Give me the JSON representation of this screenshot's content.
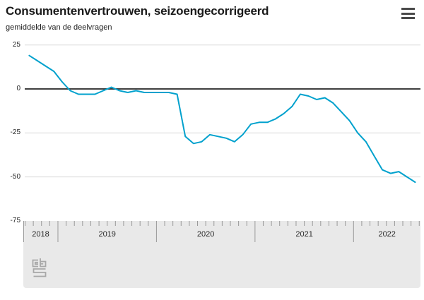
{
  "header": {
    "title": "Consumentenvertrouwen, seizoengecorrigeerd",
    "subtitle": "gemiddelde van de deelvragen",
    "menu_icon": "hamburger-menu-icon"
  },
  "footer": {
    "logo_icon": "cbs-logo-icon"
  },
  "colors": {
    "line": "#00a1cd",
    "zero_line": "#3f3f3f",
    "gridline": "#d9d9d9",
    "axis_panel": "#e9e9e9",
    "tick": "#999999",
    "text": "#1a1a1a",
    "logo": "#a8a8a8",
    "menu_icon": "#4a4a4a"
  },
  "chart_data": {
    "type": "line",
    "title": "Consumentenvertrouwen, seizoengecorrigeerd",
    "subtitle": "gemiddelde van de deelvragen",
    "series_name": "Consumentenvertrouwen (gemiddelde van de deelvragen)",
    "x": [
      "2018-09",
      "2018-10",
      "2018-11",
      "2018-12",
      "2019-01",
      "2019-02",
      "2019-03",
      "2019-04",
      "2019-05",
      "2019-06",
      "2019-07",
      "2019-08",
      "2019-09",
      "2019-10",
      "2019-11",
      "2019-12",
      "2020-01",
      "2020-02",
      "2020-03",
      "2020-04",
      "2020-05",
      "2020-06",
      "2020-07",
      "2020-08",
      "2020-09",
      "2020-10",
      "2020-11",
      "2020-12",
      "2021-01",
      "2021-02",
      "2021-03",
      "2021-04",
      "2021-05",
      "2021-06",
      "2021-07",
      "2021-08",
      "2021-09",
      "2021-10",
      "2021-11",
      "2021-12",
      "2022-01",
      "2022-02",
      "2022-03",
      "2022-04",
      "2022-05",
      "2022-06",
      "2022-07",
      "2022-08"
    ],
    "values": [
      19,
      16,
      13,
      10,
      4,
      -1,
      -3,
      -3,
      -3,
      -1,
      1,
      -1,
      -2,
      -1,
      -2,
      -2,
      -2,
      -2,
      -3,
      -27,
      -31,
      -30,
      -26,
      -27,
      -28,
      -30,
      -26,
      -20,
      -19,
      -19,
      -17,
      -14,
      -10,
      -3,
      -4,
      -6,
      -5,
      -8,
      -13,
      -18,
      -25,
      -30,
      -38,
      -46,
      -48,
      -47,
      -50,
      -53
    ],
    "ylim": [
      -75,
      25
    ],
    "yticks": [
      25,
      0,
      -25,
      -50,
      -75
    ],
    "ytick_labels": [
      "25",
      "0",
      "-25",
      "-50",
      "-75"
    ],
    "xtick_years": [
      "2018",
      "2019",
      "2020",
      "2021",
      "2022"
    ],
    "grid": true,
    "legend": false,
    "zero_line": true
  }
}
